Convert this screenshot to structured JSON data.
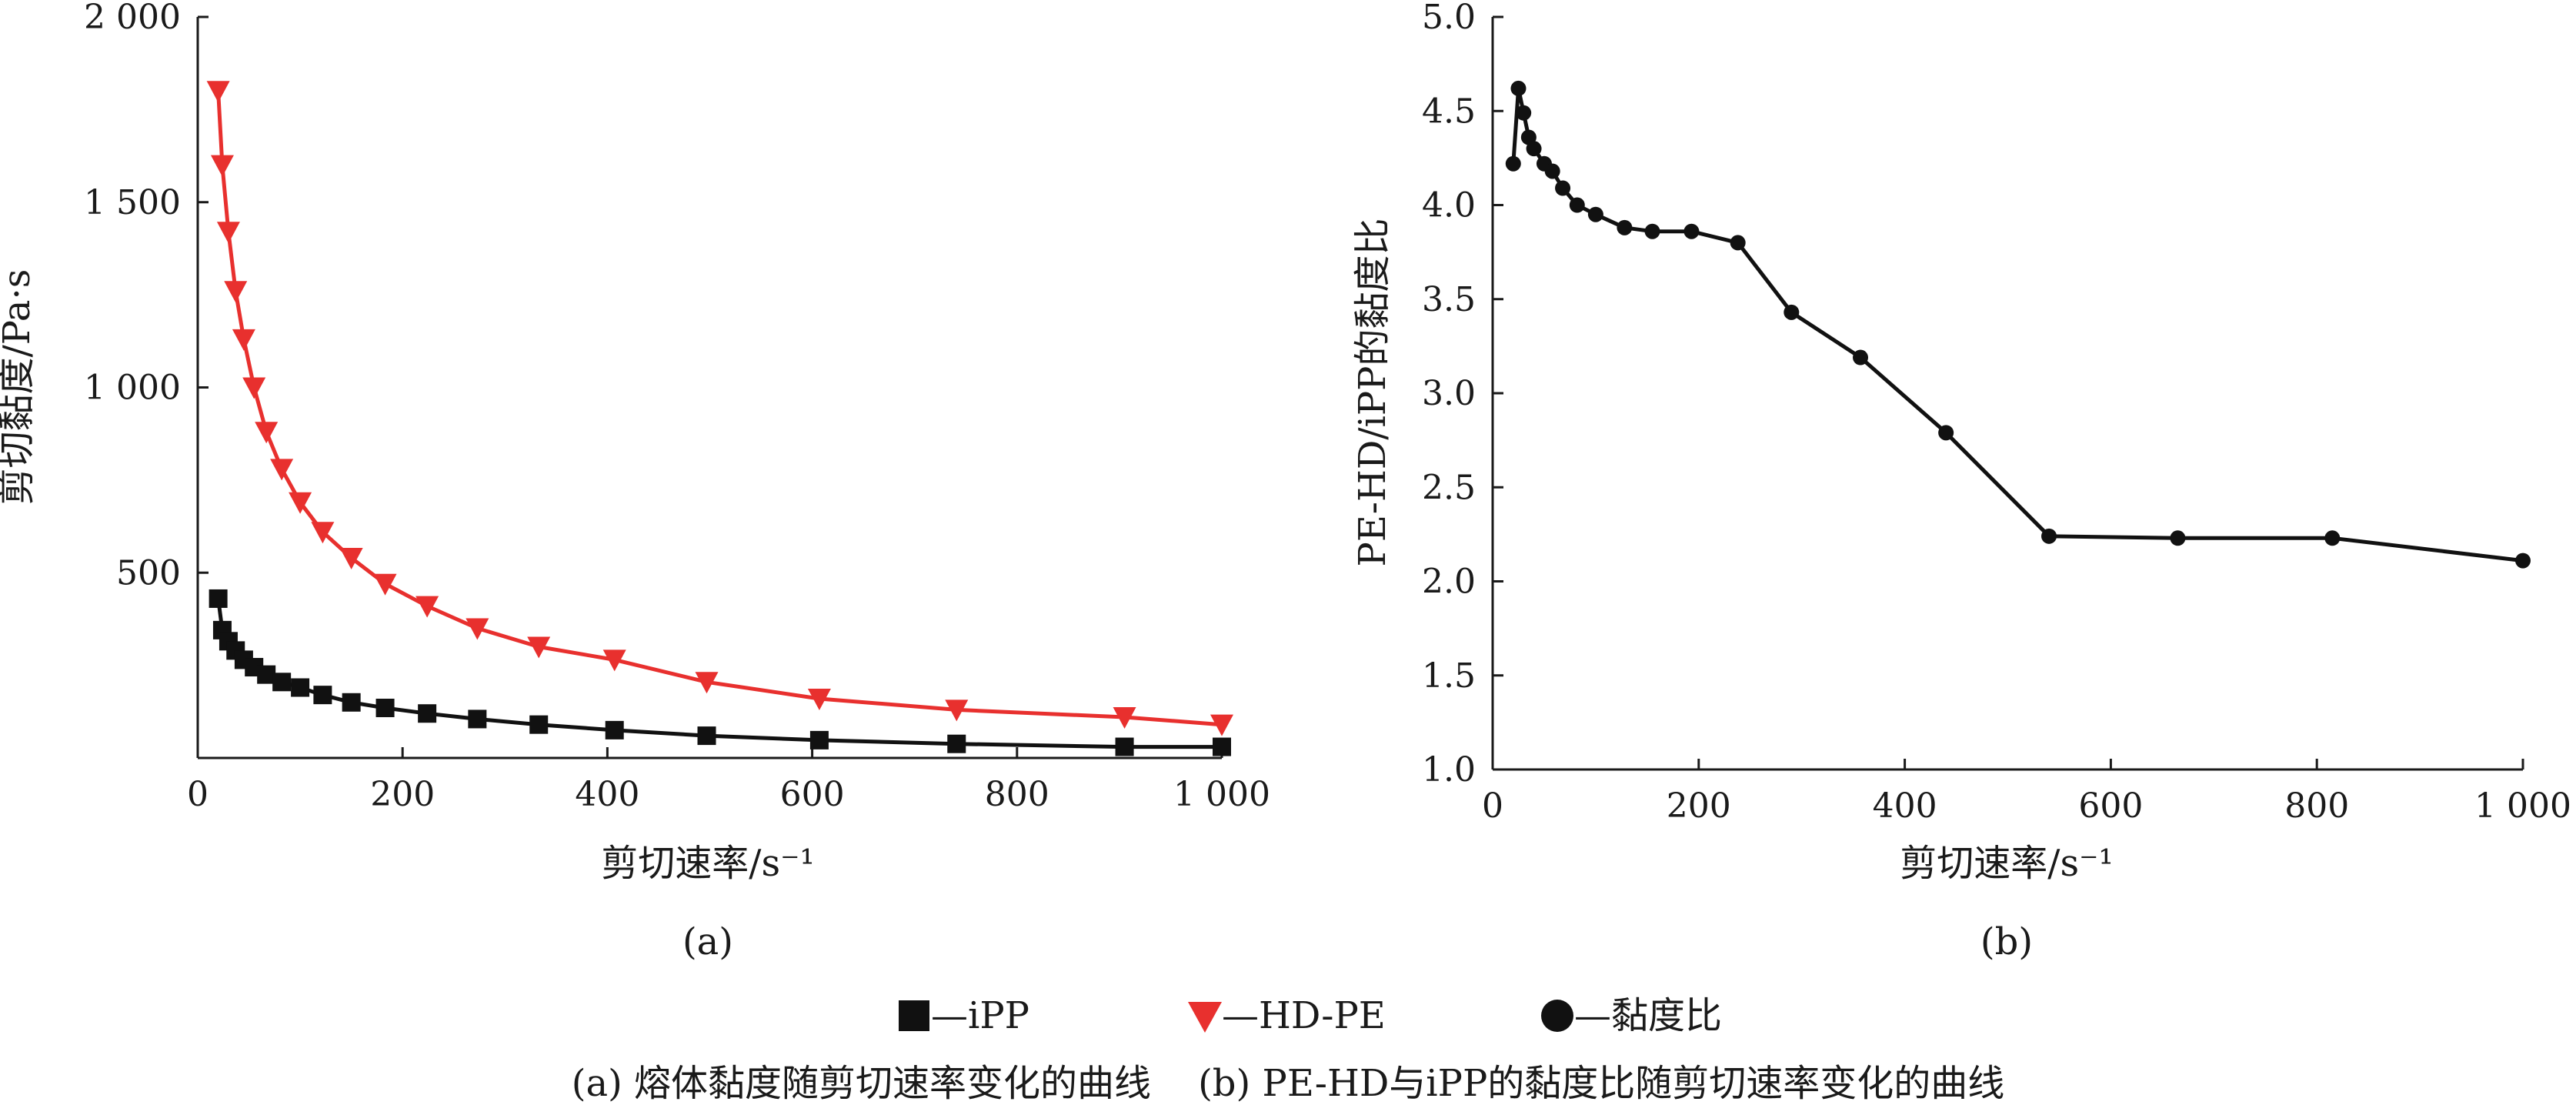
{
  "colors": {
    "ipp": "#111111",
    "hdpe": "#e8302e",
    "ratio": "#111111",
    "axis": "#1a1a1a"
  },
  "chart_data": [
    {
      "id": "a",
      "type": "line",
      "xlabel": "剪切速率/s⁻¹",
      "ylabel": "剪切黏度/Pa·s",
      "sublabel": "(a)",
      "xlim": [
        0,
        1000
      ],
      "ylim": [
        0,
        2000
      ],
      "xticks": [
        0,
        200,
        400,
        600,
        800,
        1000
      ],
      "xtick_labels": [
        "0",
        "200",
        "400",
        "600",
        "800",
        "1 000"
      ],
      "yticks": [
        500,
        1000,
        1500,
        2000
      ],
      "ytick_labels": [
        "500",
        "1 000",
        "1 500",
        "2 000"
      ],
      "series": [
        {
          "name": "iPP",
          "marker": "square",
          "x": [
            20,
            24,
            30,
            37,
            45,
            55,
            67,
            82,
            100,
            122,
            150,
            183,
            224,
            273,
            333,
            407,
            497,
            607,
            741,
            905,
            1000
          ],
          "y": [
            430,
            345,
            315,
            290,
            265,
            245,
            225,
            205,
            190,
            170,
            150,
            135,
            120,
            105,
            90,
            75,
            60,
            48,
            38,
            30,
            30
          ]
        },
        {
          "name": "HD-PE",
          "marker": "triangle-down",
          "x": [
            20,
            24,
            30,
            37,
            45,
            55,
            67,
            82,
            100,
            122,
            150,
            183,
            224,
            273,
            333,
            407,
            497,
            607,
            741,
            905,
            1000
          ],
          "y": [
            1800,
            1600,
            1420,
            1260,
            1130,
            1000,
            880,
            780,
            690,
            610,
            540,
            470,
            410,
            350,
            300,
            265,
            205,
            160,
            130,
            110,
            90
          ]
        }
      ]
    },
    {
      "id": "b",
      "type": "line",
      "xlabel": "剪切速率/s⁻¹",
      "ylabel": "PE-HD/iPP的黏度比",
      "sublabel": "(b)",
      "xlim": [
        0,
        1000
      ],
      "ylim": [
        1.0,
        5.0
      ],
      "xticks": [
        0,
        200,
        400,
        600,
        800,
        1000
      ],
      "xtick_labels": [
        "0",
        "200",
        "400",
        "600",
        "800",
        "1 000"
      ],
      "yticks": [
        1.0,
        1.5,
        2.0,
        2.5,
        3.0,
        3.5,
        4.0,
        4.5,
        5.0
      ],
      "ytick_labels": [
        "1.0",
        "1.5",
        "2.0",
        "2.5",
        "3.0",
        "3.5",
        "4.0",
        "4.5",
        "5.0"
      ],
      "series": [
        {
          "name": "黏度比",
          "marker": "circle",
          "x": [
            20,
            25,
            30,
            35,
            40,
            50,
            58,
            68,
            82,
            100,
            128,
            155,
            193,
            238,
            290,
            357,
            440,
            540,
            665,
            815,
            1000
          ],
          "y": [
            4.22,
            4.62,
            4.49,
            4.36,
            4.3,
            4.22,
            4.18,
            4.09,
            4.0,
            3.95,
            3.88,
            3.86,
            3.86,
            3.8,
            3.43,
            3.19,
            2.79,
            2.24,
            2.23,
            2.23,
            2.11
          ]
        }
      ]
    }
  ],
  "legend": {
    "items": [
      {
        "label": "—iPP",
        "marker": "square",
        "color_key": "ipp"
      },
      {
        "label": "—HD-PE",
        "marker": "triangle-down",
        "color_key": "hdpe"
      },
      {
        "label": "—黏度比",
        "marker": "circle",
        "color_key": "ratio"
      }
    ]
  },
  "caption": "(a) 熔体黏度随剪切速率变化的曲线    (b) PE-HD与iPP的黏度比随剪切速率变化的曲线"
}
